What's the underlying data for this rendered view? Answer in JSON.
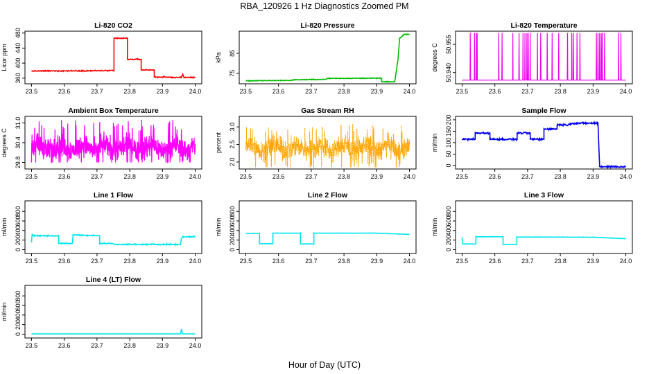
{
  "figure": {
    "title": "RBA_120926  1 Hz Diagnostics Zoomed PM",
    "xlabel": "Hour of Day (UTC)"
  },
  "chart_data": [
    {
      "id": "co2",
      "type": "line",
      "title": "Li-820 CO2",
      "ylabel": "Licor ppm",
      "xlim": [
        23.48,
        24.02
      ],
      "ylim": [
        345,
        485
      ],
      "xticks": [
        "23.5",
        "23.6",
        "23.7",
        "23.8",
        "23.9",
        "24.0"
      ],
      "yticks": [
        "360",
        "400",
        "440",
        "480"
      ],
      "color": "#ff0000",
      "series": [
        {
          "name": "CO2",
          "noise": 1.2,
          "x": [
            23.5,
            23.752,
            23.752,
            23.793,
            23.793,
            23.835,
            23.835,
            23.875,
            23.875,
            23.958,
            23.962,
            23.966,
            24.0
          ],
          "y": [
            379,
            380,
            466,
            466,
            410,
            410,
            382,
            382,
            363,
            362,
            370,
            362,
            362
          ]
        }
      ]
    },
    {
      "id": "pressure",
      "type": "line",
      "title": "Li-820 Pressure",
      "ylabel": "kPa",
      "xlim": [
        23.48,
        24.02
      ],
      "ylim": [
        69.8,
        96
      ],
      "xticks": [
        "23.5",
        "23.6",
        "23.7",
        "23.8",
        "23.9",
        "24.0"
      ],
      "yticks": [
        "75",
        "85"
      ],
      "color": "#00bb00",
      "series": [
        {
          "name": "Pressure",
          "noise": 0.15,
          "x": [
            23.5,
            23.64,
            23.645,
            23.745,
            23.75,
            23.915,
            23.915,
            23.955,
            23.965,
            23.97,
            23.985,
            24.0
          ],
          "y": [
            71.3,
            71.5,
            71.8,
            72.0,
            72.5,
            72.6,
            70.8,
            70.8,
            82,
            92.5,
            94.5,
            94.5
          ]
        }
      ]
    },
    {
      "id": "temperature",
      "type": "line",
      "title": "Li-820 Temperature",
      "ylabel": "degrees C",
      "xlim": [
        23.48,
        24.02
      ],
      "ylim": [
        50.934,
        50.962
      ],
      "xticks": [
        "23.5",
        "23.6",
        "23.7",
        "23.8",
        "23.9",
        "24.0"
      ],
      "yticks": [
        "50.940",
        "50.955"
      ],
      "color": "#ee00ee",
      "baseline": 50.936,
      "peak": 50.961,
      "spikes": [
        23.525,
        23.538,
        23.544,
        23.546,
        23.612,
        23.622,
        23.655,
        23.674,
        23.686,
        23.692,
        23.698,
        23.702,
        23.708,
        23.73,
        23.74,
        23.76,
        23.775,
        23.795,
        23.822,
        23.835,
        23.84,
        23.851,
        23.86,
        23.91,
        23.915,
        23.92,
        23.925,
        23.928,
        23.935,
        23.978,
        23.985
      ]
    },
    {
      "id": "boxtemp",
      "type": "line",
      "title": "Ambient Box Temperature",
      "ylabel": "degrees C",
      "xlim": [
        23.48,
        24.02
      ],
      "ylim": [
        29.6,
        31.2
      ],
      "xticks": [
        "23.5",
        "23.6",
        "23.7",
        "23.8",
        "23.9",
        "24.0"
      ],
      "yticks": [
        "29.8",
        "30.4",
        "31.0"
      ],
      "color": "#ff00ff",
      "noise_band": {
        "center": 30.25,
        "min": 29.8,
        "max": 31.1,
        "spread": 0.28
      }
    },
    {
      "id": "rh",
      "type": "line",
      "title": "Gas Stream RH",
      "ylabel": "percent",
      "xlim": [
        23.48,
        24.02
      ],
      "ylim": [
        1.8,
        3.3
      ],
      "xticks": [
        "23.5",
        "23.6",
        "23.7",
        "23.8",
        "23.9",
        "24.0"
      ],
      "yticks": [
        "2.0",
        "2.5",
        "3.0"
      ],
      "color": "#ffa500",
      "dots": true,
      "noise_band": {
        "center": 2.4,
        "min": 1.85,
        "max": 3.1,
        "spread": 0.25
      }
    },
    {
      "id": "sample",
      "type": "line",
      "title": "Sample Flow",
      "ylabel": "ml/min",
      "xlim": [
        23.48,
        24.02
      ],
      "ylim": [
        -15,
        215
      ],
      "xticks": [
        "23.5",
        "23.6",
        "23.7",
        "23.8",
        "23.9",
        "24.0"
      ],
      "yticks": [
        "0",
        "50",
        "100",
        "150",
        "200"
      ],
      "color": "#0000ee",
      "noise": 3.5,
      "series": [
        {
          "name": "Sample",
          "noise": 3.5,
          "x": [
            23.5,
            23.54,
            23.54,
            23.585,
            23.585,
            23.668,
            23.668,
            23.708,
            23.708,
            23.75,
            23.75,
            23.79,
            23.79,
            23.83,
            23.83,
            23.915,
            23.92,
            24.0
          ],
          "y": [
            115,
            115,
            142,
            142,
            115,
            115,
            142,
            142,
            115,
            115,
            160,
            160,
            178,
            178,
            185,
            185,
            -5,
            -5
          ]
        }
      ]
    },
    {
      "id": "line1",
      "type": "line",
      "title": "Line 1 Flow",
      "ylabel": "ml/min",
      "xlim": [
        23.48,
        24.02
      ],
      "ylim": [
        -80,
        1020
      ],
      "xticks": [
        "23.5",
        "23.6",
        "23.7",
        "23.8",
        "23.9",
        "24.0"
      ],
      "yticks": [
        "0",
        "200",
        "400",
        "600",
        "800"
      ],
      "color": "#00e5ee",
      "series": [
        {
          "name": "Line 1",
          "noise": 10,
          "x": [
            23.5,
            23.502,
            23.504,
            23.583,
            23.583,
            23.625,
            23.627,
            23.708,
            23.708,
            23.748,
            23.752,
            23.955,
            23.958,
            23.962,
            24.0
          ],
          "y": [
            150,
            330,
            290,
            290,
            130,
            130,
            310,
            290,
            130,
            130,
            110,
            110,
            240,
            270,
            270
          ]
        }
      ]
    },
    {
      "id": "line2",
      "type": "line",
      "title": "Line 2 Flow",
      "ylabel": "ml/min",
      "xlim": [
        23.48,
        24.02
      ],
      "ylim": [
        -80,
        1020
      ],
      "xticks": [
        "23.5",
        "23.6",
        "23.7",
        "23.8",
        "23.9",
        "24.0"
      ],
      "yticks": [
        "0",
        "200",
        "400",
        "600",
        "800"
      ],
      "color": "#00e5ee",
      "series": [
        {
          "name": "Line 2",
          "noise": 2,
          "x": [
            23.5,
            23.542,
            23.542,
            23.583,
            23.583,
            23.667,
            23.667,
            23.708,
            23.708,
            23.9,
            24.0
          ],
          "y": [
            340,
            340,
            125,
            125,
            345,
            345,
            120,
            120,
            345,
            345,
            320
          ]
        }
      ]
    },
    {
      "id": "line3",
      "type": "line",
      "title": "Line 3 Flow",
      "ylabel": "ml/min",
      "xlim": [
        23.48,
        24.02
      ],
      "ylim": [
        -80,
        1020
      ],
      "xticks": [
        "23.5",
        "23.6",
        "23.7",
        "23.8",
        "23.9",
        "24.0"
      ],
      "yticks": [
        "0",
        "200",
        "400",
        "600",
        "800"
      ],
      "color": "#00e5ee",
      "series": [
        {
          "name": "Line 3",
          "noise": 3,
          "x": [
            23.5,
            23.502,
            23.502,
            23.542,
            23.542,
            23.625,
            23.625,
            23.667,
            23.667,
            23.9,
            24.0
          ],
          "y": [
            260,
            120,
            120,
            120,
            270,
            270,
            110,
            110,
            265,
            260,
            230
          ]
        }
      ]
    },
    {
      "id": "line4",
      "type": "line",
      "title": "Line 4 (LT) Flow",
      "ylabel": "ml/min",
      "xlim": [
        23.48,
        24.02
      ],
      "ylim": [
        -80,
        1020
      ],
      "xticks": [
        "23.5",
        "23.6",
        "23.7",
        "23.8",
        "23.9",
        "24.0"
      ],
      "yticks": [
        "0",
        "200",
        "400",
        "600",
        "800"
      ],
      "color": "#00e5ee",
      "series": [
        {
          "name": "Line 4",
          "noise": 1,
          "x": [
            23.5,
            23.955,
            23.958,
            23.961,
            23.964,
            24.0
          ],
          "y": [
            5,
            5,
            110,
            5,
            5,
            5
          ]
        }
      ]
    }
  ]
}
